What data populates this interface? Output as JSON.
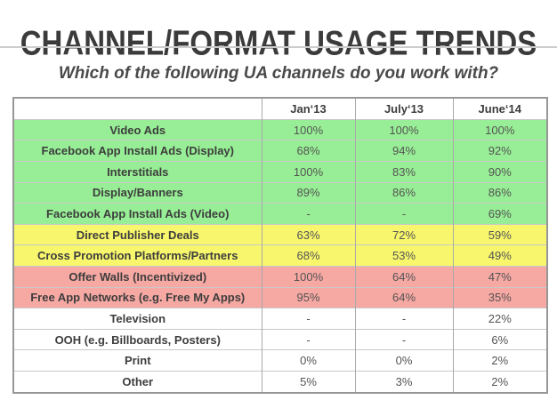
{
  "chart_data": {
    "type": "table",
    "title": "CHANNEL/FORMAT USAGE TRENDS",
    "subtitle": "Which of the following UA channels do you work with?",
    "columns": [
      "Jan‘13",
      "July‘13",
      "June‘14"
    ],
    "rows": [
      {
        "label": "Video Ads",
        "values": [
          "100%",
          "100%",
          "100%"
        ],
        "band": "green"
      },
      {
        "label": "Facebook App Install Ads (Display)",
        "values": [
          "68%",
          "94%",
          "92%"
        ],
        "band": "green"
      },
      {
        "label": "Interstitials",
        "values": [
          "100%",
          "83%",
          "90%"
        ],
        "band": "green"
      },
      {
        "label": "Display/Banners",
        "values": [
          "89%",
          "86%",
          "86%"
        ],
        "band": "green"
      },
      {
        "label": "Facebook App Install Ads (Video)",
        "values": [
          "-",
          "-",
          "69%"
        ],
        "band": "green"
      },
      {
        "label": "Direct Publisher Deals",
        "values": [
          "63%",
          "72%",
          "59%"
        ],
        "band": "yellow"
      },
      {
        "label": "Cross Promotion Platforms/Partners",
        "values": [
          "68%",
          "53%",
          "49%"
        ],
        "band": "yellow"
      },
      {
        "label": "Offer Walls (Incentivized)",
        "values": [
          "100%",
          "64%",
          "47%"
        ],
        "band": "red"
      },
      {
        "label": "Free App Networks (e.g. Free My Apps)",
        "values": [
          "95%",
          "64%",
          "35%"
        ],
        "band": "red"
      },
      {
        "label": "Television",
        "values": [
          "-",
          "-",
          "22%"
        ],
        "band": "white"
      },
      {
        "label": "OOH (e.g. Billboards, Posters)",
        "values": [
          "-",
          "-",
          "6%"
        ],
        "band": "white"
      },
      {
        "label": "Print",
        "values": [
          "0%",
          "0%",
          "2%"
        ],
        "band": "white"
      },
      {
        "label": "Other",
        "values": [
          "5%",
          "3%",
          "2%"
        ],
        "band": "white"
      }
    ],
    "band_colors": {
      "green": "#98EE96",
      "yellow": "#F8F66C",
      "red": "#F6A8A3",
      "white": "#FFFFFF"
    },
    "layout": {
      "legend": "none",
      "grid": "on"
    }
  }
}
